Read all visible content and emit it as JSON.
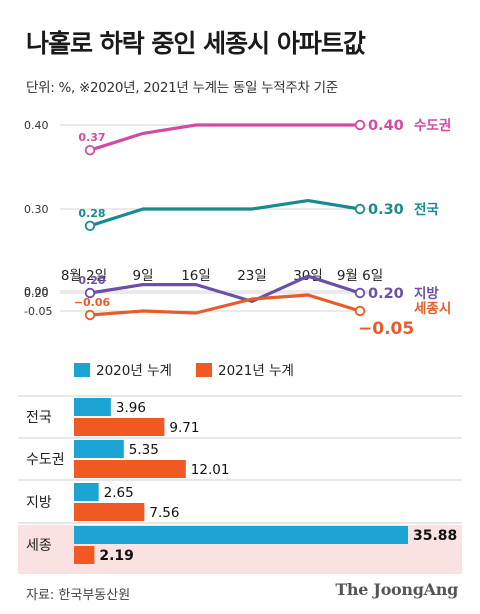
{
  "title": "나홀로 하락 중인 세종시 아파트값",
  "subtitle": "단위: %, ※2020년, 2021년 누계는 동일 누적주차 기준",
  "source": "자료: 한국부동산원",
  "logo": "The JoongAng",
  "colors": {
    "capital": "#d24ba2",
    "national": "#1a8a8f",
    "regional": "#6b4fa8",
    "sejong": "#e85c2c",
    "bar2020": "#1ba4d4",
    "bar2021": "#f05a22",
    "highlight": "#fbe2e2"
  },
  "chart_data": [
    {
      "type": "line",
      "x": [
        "8월 2일",
        "9일",
        "16일",
        "23일",
        "30일",
        "9월 6일"
      ],
      "y_ticks": [
        "0.40",
        "0.30",
        "0.20",
        "0.00",
        "-0.05"
      ],
      "ylim": [
        -0.05,
        0.4
      ],
      "grid": true,
      "series": [
        {
          "name": "수도권",
          "values": [
            0.37,
            0.39,
            0.4,
            0.4,
            0.4,
            0.4
          ],
          "first_label": "0.37",
          "last_label": "0.40"
        },
        {
          "name": "전국",
          "values": [
            0.28,
            0.3,
            0.3,
            0.3,
            0.31,
            0.3
          ],
          "first_label": "0.28",
          "last_label": "0.30"
        },
        {
          "name": "지방",
          "values": [
            0.2,
            0.21,
            0.21,
            0.19,
            0.22,
            0.2
          ],
          "first_label": "0.20",
          "last_label": "0.20"
        },
        {
          "name": "세종시",
          "values": [
            -0.06,
            -0.05,
            -0.055,
            -0.02,
            -0.01,
            -0.05
          ],
          "first_label": "−0.06",
          "last_label": "−0.05"
        }
      ]
    },
    {
      "type": "bar",
      "orientation": "horizontal",
      "categories": [
        "전국",
        "수도권",
        "지방",
        "세종"
      ],
      "series": [
        {
          "name": "2020년 누계",
          "values": [
            3.96,
            5.35,
            2.65,
            35.88
          ],
          "labels": [
            "3.96",
            "5.35",
            "2.65",
            "35.88"
          ]
        },
        {
          "name": "2021년 누계",
          "values": [
            9.71,
            12.01,
            7.56,
            2.19
          ],
          "labels": [
            "9.71",
            "12.01",
            "7.56",
            "2.19"
          ]
        }
      ],
      "highlight_category": "세종"
    }
  ]
}
